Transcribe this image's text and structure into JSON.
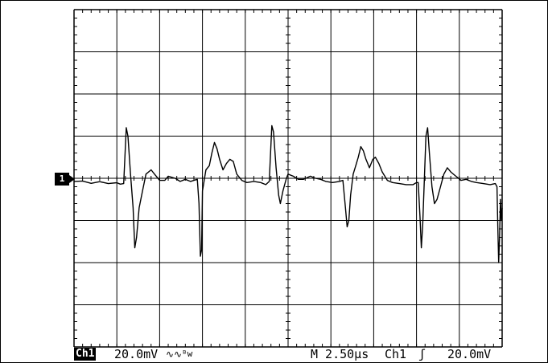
{
  "chart_data": {
    "type": "line",
    "title": "",
    "xlabel": "",
    "ylabel": "",
    "grid": true,
    "divisions": {
      "x": 10,
      "y": 8
    },
    "xlim": [
      -12.5,
      12.5
    ],
    "x_unit": "µs",
    "ylim": [
      -80,
      80
    ],
    "y_unit": "mV",
    "series": [
      {
        "values_note": "",
        "points": [
          [
            -12.5,
            -1.5
          ],
          [
            -12.0,
            -1.3
          ],
          [
            -11.5,
            -2.4
          ],
          [
            -11.0,
            -1.6
          ],
          [
            -10.5,
            -2.5
          ],
          [
            -10.0,
            -2.1
          ],
          [
            -9.8,
            -2.8
          ],
          [
            -9.6,
            -2.5
          ],
          [
            -9.45,
            24
          ],
          [
            -9.35,
            20
          ],
          [
            -9.2,
            2
          ],
          [
            -9.05,
            -14
          ],
          [
            -8.95,
            -33
          ],
          [
            -8.85,
            -28
          ],
          [
            -8.7,
            -14
          ],
          [
            -8.5,
            -6
          ],
          [
            -8.3,
            2
          ],
          [
            -8.0,
            4
          ],
          [
            -7.8,
            2
          ],
          [
            -7.5,
            -1
          ],
          [
            -7.2,
            -1
          ],
          [
            -7.0,
            1
          ],
          [
            -6.6,
            0
          ],
          [
            -6.3,
            -1.5
          ],
          [
            -6.0,
            -0.5
          ],
          [
            -5.7,
            -1.5
          ],
          [
            -5.5,
            -1
          ],
          [
            -5.3,
            -0.5
          ],
          [
            -5.2,
            -12
          ],
          [
            -5.12,
            -37
          ],
          [
            -5.05,
            -34
          ],
          [
            -5.0,
            -6
          ],
          [
            -4.8,
            4
          ],
          [
            -4.6,
            6
          ],
          [
            -4.45,
            12
          ],
          [
            -4.3,
            17
          ],
          [
            -4.15,
            14
          ],
          [
            -4.0,
            9
          ],
          [
            -3.8,
            4
          ],
          [
            -3.6,
            7
          ],
          [
            -3.4,
            9
          ],
          [
            -3.2,
            8
          ],
          [
            -3.0,
            2
          ],
          [
            -2.7,
            -1
          ],
          [
            -2.4,
            -2
          ],
          [
            -2.0,
            -1.5
          ],
          [
            -1.6,
            -2
          ],
          [
            -1.3,
            -3
          ],
          [
            -1.1,
            -1.5
          ],
          [
            -0.95,
            25
          ],
          [
            -0.85,
            22
          ],
          [
            -0.7,
            5
          ],
          [
            -0.55,
            -8
          ],
          [
            -0.45,
            -12
          ],
          [
            -0.3,
            -6
          ],
          [
            -0.1,
            0
          ],
          [
            0.0,
            2
          ],
          [
            0.3,
            1
          ],
          [
            0.6,
            -0.5
          ],
          [
            0.9,
            -0.5
          ],
          [
            1.3,
            1
          ],
          [
            1.6,
            0
          ],
          [
            1.9,
            -0.5
          ],
          [
            2.2,
            -1.5
          ],
          [
            2.6,
            -2
          ],
          [
            3.0,
            -1.5
          ],
          [
            3.2,
            -1
          ],
          [
            3.35,
            -14
          ],
          [
            3.45,
            -23
          ],
          [
            3.55,
            -20
          ],
          [
            3.65,
            -8
          ],
          [
            3.8,
            2
          ],
          [
            3.95,
            6
          ],
          [
            4.1,
            10
          ],
          [
            4.25,
            15
          ],
          [
            4.4,
            13
          ],
          [
            4.55,
            9
          ],
          [
            4.75,
            5
          ],
          [
            4.95,
            9
          ],
          [
            5.1,
            10
          ],
          [
            5.3,
            7
          ],
          [
            5.5,
            3
          ],
          [
            5.8,
            -1
          ],
          [
            6.1,
            -2
          ],
          [
            6.5,
            -2.5
          ],
          [
            6.9,
            -3
          ],
          [
            7.3,
            -3
          ],
          [
            7.5,
            -2
          ],
          [
            7.6,
            -2
          ],
          [
            7.7,
            -18
          ],
          [
            7.78,
            -33
          ],
          [
            7.86,
            -22
          ],
          [
            7.95,
            -2
          ],
          [
            8.05,
            20
          ],
          [
            8.15,
            24
          ],
          [
            8.25,
            12
          ],
          [
            8.4,
            -4
          ],
          [
            8.55,
            -12
          ],
          [
            8.7,
            -10
          ],
          [
            8.9,
            -4
          ],
          [
            9.1,
            2
          ],
          [
            9.3,
            5
          ],
          [
            9.5,
            3
          ],
          [
            9.8,
            1
          ],
          [
            10.1,
            -1
          ],
          [
            10.4,
            -0.5
          ],
          [
            10.7,
            -1.5
          ],
          [
            11.0,
            -2
          ],
          [
            11.4,
            -2.5
          ],
          [
            11.8,
            -3
          ],
          [
            12.1,
            -2.5
          ],
          [
            12.2,
            -4
          ],
          [
            12.25,
            -24
          ],
          [
            12.3,
            -40
          ],
          [
            12.35,
            -28
          ],
          [
            12.4,
            -10
          ],
          [
            12.45,
            -20
          ],
          [
            12.5,
            -14
          ]
        ]
      }
    ]
  },
  "readout": {
    "channel_tag": "Ch1",
    "volts_div": "20.0mV",
    "coupling_symbol": "∿∿",
    "bw_symbol": "ᴮw",
    "timebase": "M 2.50µs",
    "trigger_source": "Ch1",
    "trigger_symbol": "ʃ",
    "trigger_level": "20.0mV"
  },
  "marker": {
    "label": "1"
  }
}
